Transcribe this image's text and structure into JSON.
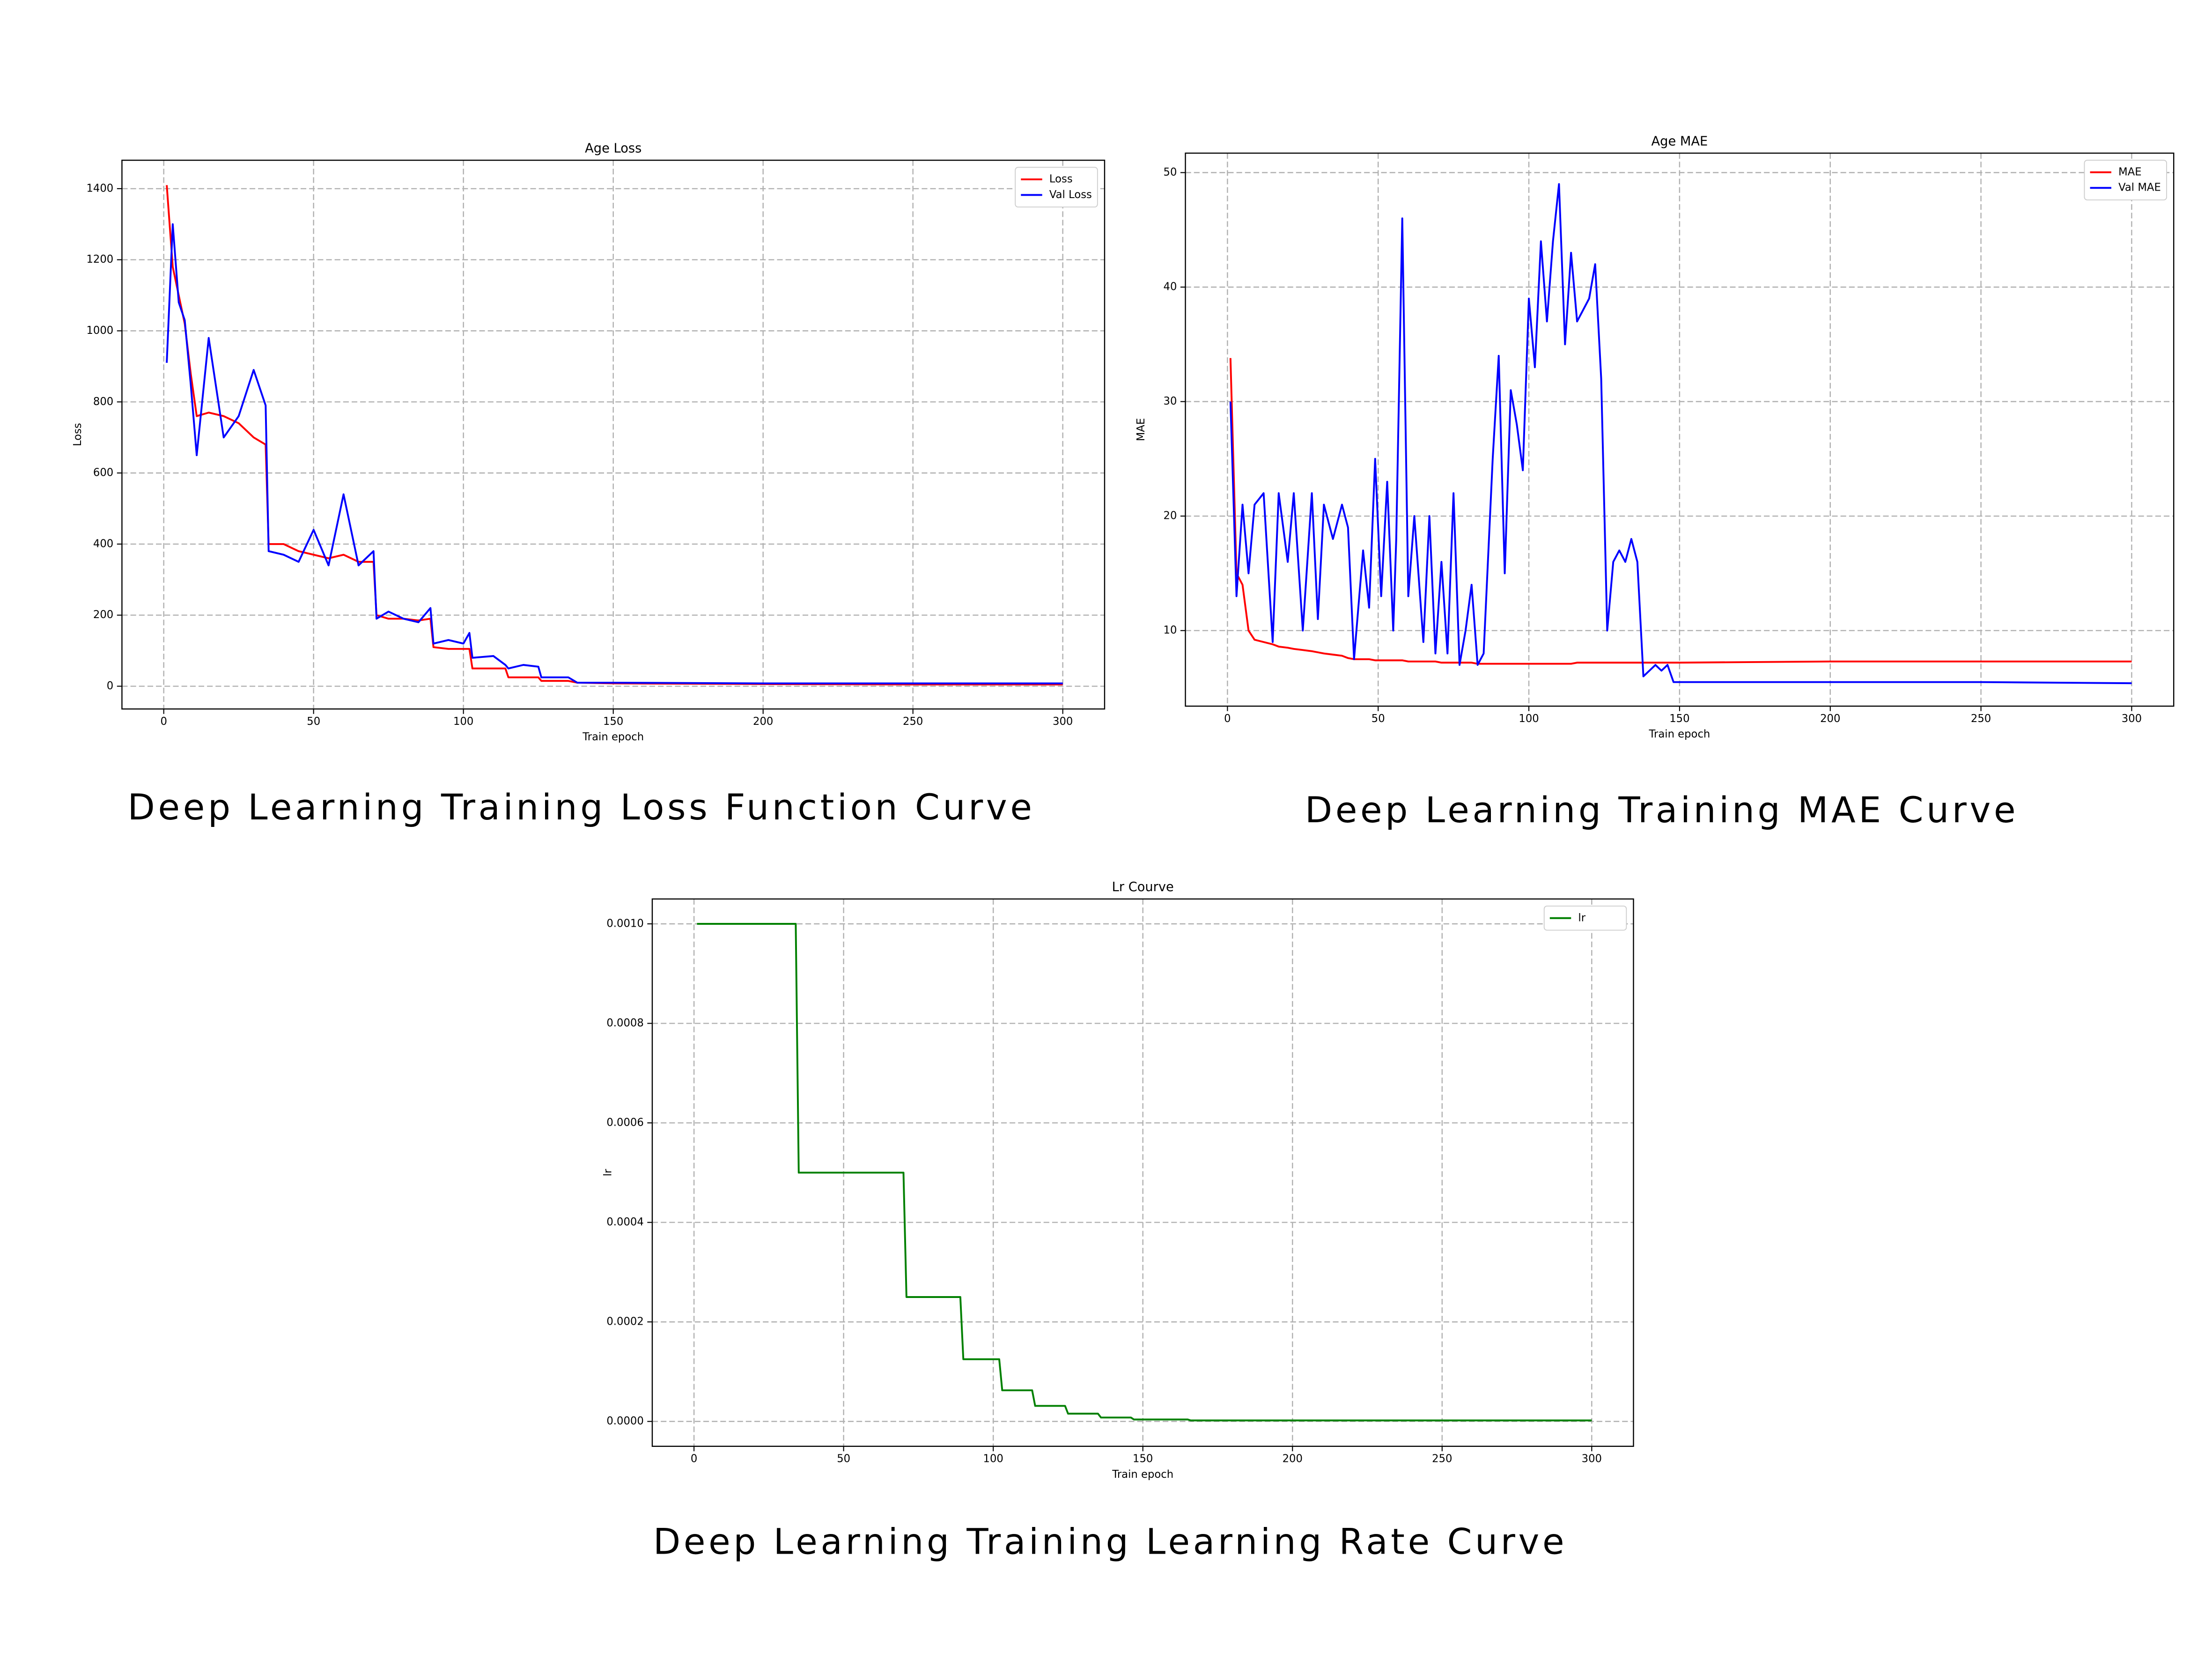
{
  "chart_data": [
    {
      "type": "line",
      "title": "Age Loss",
      "x_label": "Train epoch",
      "y_label": "Loss",
      "caption": "Deep Learning Training Loss Function Curve",
      "x": [
        1,
        3,
        5,
        7,
        9,
        11,
        15,
        20,
        25,
        30,
        34,
        35,
        40,
        45,
        50,
        55,
        60,
        65,
        70,
        71,
        75,
        80,
        85,
        89,
        90,
        95,
        100,
        102,
        103,
        110,
        114,
        115,
        120,
        125,
        126,
        135,
        138,
        150,
        200,
        250,
        300
      ],
      "series": [
        {
          "name": "Loss",
          "color": "#ff0000",
          "values": [
            1410,
            1180,
            1100,
            1020,
            880,
            760,
            770,
            760,
            740,
            700,
            680,
            400,
            400,
            380,
            370,
            360,
            370,
            350,
            350,
            200,
            190,
            190,
            185,
            190,
            110,
            105,
            105,
            105,
            50,
            50,
            50,
            25,
            25,
            25,
            15,
            15,
            10,
            8,
            6,
            5,
            5
          ]
        },
        {
          "name": "Val Loss",
          "color": "#0000ff",
          "values": [
            910,
            1300,
            1080,
            1030,
            850,
            650,
            980,
            700,
            760,
            890,
            790,
            380,
            370,
            350,
            440,
            340,
            540,
            340,
            380,
            190,
            210,
            190,
            180,
            220,
            120,
            130,
            120,
            150,
            80,
            85,
            60,
            50,
            60,
            55,
            25,
            25,
            10,
            10,
            8,
            8,
            8
          ]
        }
      ],
      "xlim": [
        -13.95,
        313.95
      ],
      "xticks": [
        0,
        50,
        100,
        150,
        200,
        250,
        300
      ],
      "ylim": [
        -64,
        1480
      ],
      "yticks": [
        0,
        200,
        400,
        600,
        800,
        1000,
        1200,
        1400
      ],
      "grid": true,
      "legend": "upper-right"
    },
    {
      "type": "line",
      "title": "Age MAE",
      "x_label": "Train epoch",
      "y_label": "MAE",
      "caption": "Deep Learning Training MAE Curve",
      "x": [
        1,
        3,
        5,
        7,
        9,
        12,
        15,
        17,
        20,
        22,
        25,
        28,
        30,
        32,
        35,
        38,
        40,
        42,
        45,
        47,
        49,
        51,
        53,
        55,
        56,
        58,
        60,
        62,
        65,
        67,
        69,
        71,
        73,
        75,
        77,
        79,
        81,
        83,
        85,
        88,
        90,
        92,
        94,
        96,
        98,
        100,
        102,
        104,
        106,
        108,
        110,
        112,
        114,
        116,
        118,
        120,
        122,
        124,
        126,
        128,
        130,
        132,
        134,
        136,
        138,
        140,
        142,
        144,
        146,
        148,
        150,
        200,
        250,
        300
      ],
      "series": [
        {
          "name": "MAE",
          "color": "#ff0000",
          "values": [
            33.8,
            15,
            14,
            10,
            9.2,
            9,
            8.8,
            8.6,
            8.5,
            8.4,
            8.3,
            8.2,
            8.1,
            8,
            7.9,
            7.8,
            7.6,
            7.5,
            7.5,
            7.5,
            7.4,
            7.4,
            7.4,
            7.4,
            7.4,
            7.4,
            7.3,
            7.3,
            7.3,
            7.3,
            7.3,
            7.2,
            7.2,
            7.2,
            7.2,
            7.2,
            7.2,
            7.1,
            7.1,
            7.1,
            7.1,
            7.1,
            7.1,
            7.1,
            7.1,
            7.1,
            7.1,
            7.1,
            7.1,
            7.1,
            7.1,
            7.1,
            7.1,
            7.2,
            7.2,
            7.2,
            7.2,
            7.2,
            7.2,
            7.2,
            7.2,
            7.2,
            7.2,
            7.2,
            7.2,
            7.2,
            7.2,
            7.2,
            7.2,
            7.2,
            7.2,
            7.3,
            7.3,
            7.3
          ]
        },
        {
          "name": "Val MAE",
          "color": "#0000ff",
          "values": [
            30,
            13,
            21,
            15,
            21,
            22,
            9,
            22,
            16,
            22,
            10,
            22,
            11,
            21,
            18,
            21,
            19,
            7.5,
            17,
            12,
            25,
            13,
            23,
            10,
            18,
            46,
            13,
            20,
            9,
            20,
            8,
            16,
            8,
            22,
            7,
            10,
            14,
            7,
            8,
            25,
            34,
            15,
            31,
            28,
            24,
            39,
            33,
            44,
            37,
            44,
            49,
            35,
            43,
            37,
            38,
            39,
            42,
            32,
            10,
            16,
            17,
            16,
            18,
            16,
            6,
            6.5,
            7,
            6.5,
            7,
            5.5,
            5.5,
            5.5,
            5.5,
            5.4
          ]
        }
      ],
      "xlim": [
        -13.95,
        313.95
      ],
      "xticks": [
        0,
        50,
        100,
        150,
        200,
        250,
        300
      ],
      "ylim": [
        3.4,
        51.7
      ],
      "yticks": [
        10,
        20,
        30,
        40,
        50
      ],
      "grid": true,
      "legend": "upper-right"
    },
    {
      "type": "line",
      "title": "Lr Courve",
      "x_label": "Train epoch",
      "y_label": "lr",
      "caption": "Deep Learning Training Learning Rate Curve",
      "x": [
        1,
        34,
        35,
        70,
        71,
        89,
        90,
        102,
        103,
        113,
        114,
        124,
        125,
        135,
        136,
        146,
        147,
        165,
        166,
        300
      ],
      "series": [
        {
          "name": "lr",
          "color": "#008000",
          "values": [
            0.001,
            0.001,
            0.0005,
            0.0005,
            0.00025,
            0.00025,
            0.000125,
            0.000125,
            6.25e-05,
            6.25e-05,
            3.125e-05,
            3.125e-05,
            1.5625e-05,
            1.5625e-05,
            7.8125e-06,
            7.8125e-06,
            3.9e-06,
            3.9e-06,
            2e-06,
            2e-06
          ]
        }
      ],
      "xlim": [
        -13.95,
        313.95
      ],
      "xticks": [
        0,
        50,
        100,
        150,
        200,
        250,
        300
      ],
      "ylim": [
        -5e-05,
        0.00105
      ],
      "yticks": [
        {
          "value": 0,
          "label": "0.0000"
        },
        {
          "value": 0.0002,
          "label": "0.0002"
        },
        {
          "value": 0.0004,
          "label": "0.0004"
        },
        {
          "value": 0.0006,
          "label": "0.0006"
        },
        {
          "value": 0.0008,
          "label": "0.0008"
        },
        {
          "value": 0.001,
          "label": "0.0010"
        }
      ],
      "grid": true,
      "legend": "upper-right"
    }
  ]
}
